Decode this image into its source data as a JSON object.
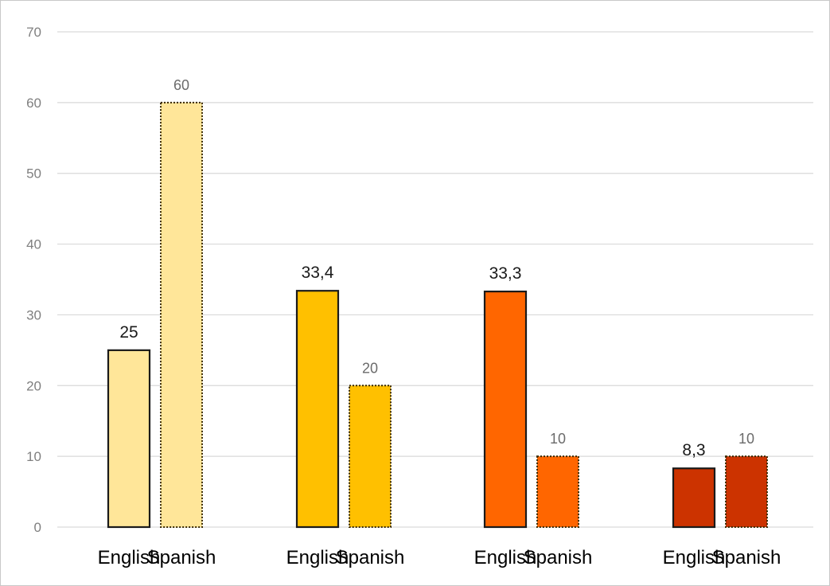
{
  "chart_data": {
    "type": "bar",
    "ylim": [
      0,
      70
    ],
    "yticks": [
      0,
      10,
      20,
      30,
      40,
      50,
      60,
      70
    ],
    "grid": true,
    "groups": [
      {
        "bars": [
          {
            "label": "English",
            "value": 25,
            "value_label": "25",
            "fill": "#FFE699",
            "style": "solid"
          },
          {
            "label": "Spanish",
            "value": 60,
            "value_label": "60",
            "fill": "#FFE699",
            "style": "dotted"
          }
        ]
      },
      {
        "bars": [
          {
            "label": "English",
            "value": 33.4,
            "value_label": "33,4",
            "fill": "#FFC000",
            "style": "solid"
          },
          {
            "label": "Spanish",
            "value": 20,
            "value_label": "20",
            "fill": "#FFC000",
            "style": "dotted"
          }
        ]
      },
      {
        "bars": [
          {
            "label": "English",
            "value": 33.3,
            "value_label": "33,3",
            "fill": "#FF6600",
            "style": "solid"
          },
          {
            "label": "Spanish",
            "value": 10,
            "value_label": "10",
            "fill": "#FF6600",
            "style": "dotted"
          }
        ]
      },
      {
        "bars": [
          {
            "label": "English",
            "value": 8.3,
            "value_label": "8,3",
            "fill": "#CC3300",
            "style": "solid"
          },
          {
            "label": "Spanish",
            "value": 10,
            "value_label": "10",
            "fill": "#CC3300",
            "style": "dotted"
          }
        ]
      }
    ]
  }
}
